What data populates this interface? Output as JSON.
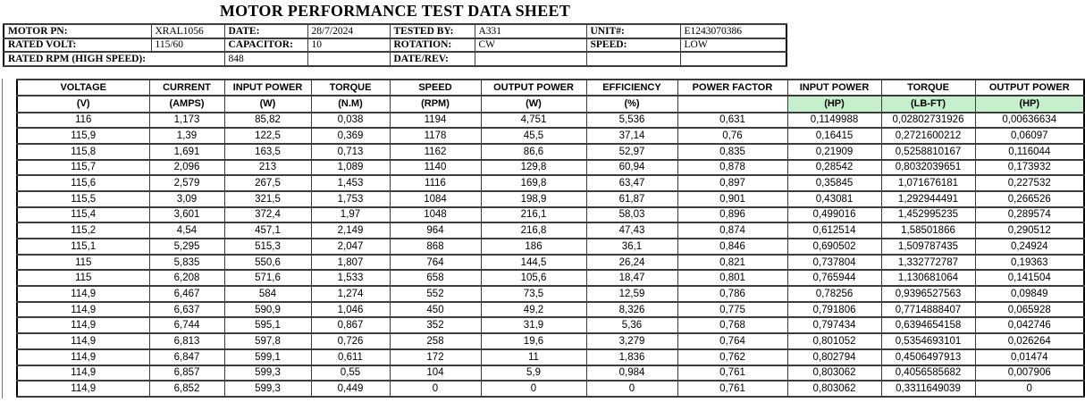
{
  "title": "MOTOR PERFORMANCE TEST DATA SHEET",
  "info": {
    "motor_pn": {
      "label": "MOTOR PN:",
      "value": "XRAL1056"
    },
    "date": {
      "label": "DATE:",
      "value": "28/7/2024"
    },
    "tested_by": {
      "label": "TESTED BY:",
      "value": "A331"
    },
    "unit_no": {
      "label": "UNIT#:",
      "value": "E1243070386"
    },
    "rated_volt": {
      "label": "RATED VOLT:",
      "value": "115/60"
    },
    "capacitor": {
      "label": "CAPACITOR:",
      "value": "10"
    },
    "rotation": {
      "label": "ROTATION:",
      "value": "CW"
    },
    "speed": {
      "label": "SPEED:",
      "value": "LOW"
    },
    "rated_rpm": {
      "label": "RATED RPM (HIGH SPEED):",
      "value": "848"
    },
    "date_rev": {
      "label": "DATE/REV:",
      "value": ""
    }
  },
  "table": {
    "highlight_color": "#c6efce",
    "columns": [
      {
        "id": "voltage",
        "name": "VOLTAGE",
        "unit": "(V)",
        "highlight": false
      },
      {
        "id": "current",
        "name": "CURRENT",
        "unit": "(AMPS)",
        "highlight": false
      },
      {
        "id": "input-power-w",
        "name": "INPUT POWER",
        "unit": "(W)",
        "highlight": false
      },
      {
        "id": "torque-nm",
        "name": "TORQUE",
        "unit": "(N.M)",
        "highlight": false
      },
      {
        "id": "speed-rpm",
        "name": "SPEED",
        "unit": "(RPM)",
        "highlight": false
      },
      {
        "id": "output-power-w",
        "name": "OUTPUT POWER",
        "unit": "(W)",
        "highlight": false
      },
      {
        "id": "efficiency",
        "name": "EFFICIENCY",
        "unit": "(%)",
        "highlight": false
      },
      {
        "id": "power-factor",
        "name": "POWER FACTOR",
        "unit": "",
        "highlight": false
      },
      {
        "id": "input-power-hp",
        "name": "INPUT POWER",
        "unit": "(HP)",
        "highlight": true
      },
      {
        "id": "torque-lbft",
        "name": "TORQUE",
        "unit": "(LB-FT)",
        "highlight": true
      },
      {
        "id": "output-power-hp",
        "name": "OUTPUT POWER",
        "unit": "(HP)",
        "highlight": true
      }
    ],
    "rows": [
      [
        "116",
        "1,173",
        "85,82",
        "0,038",
        "1194",
        "4,751",
        "5,536",
        "0,631",
        "0,1149988",
        "0,02802731926",
        "0,00636634"
      ],
      [
        "115,9",
        "1,39",
        "122,5",
        "0,369",
        "1178",
        "45,5",
        "37,14",
        "0,76",
        "0,16415",
        "0,2721600212",
        "0,06097"
      ],
      [
        "115,8",
        "1,691",
        "163,5",
        "0,713",
        "1162",
        "86,6",
        "52,97",
        "0,835",
        "0,21909",
        "0,5258810167",
        "0,116044"
      ],
      [
        "115,7",
        "2,096",
        "213",
        "1,089",
        "1140",
        "129,8",
        "60,94",
        "0,878",
        "0,28542",
        "0,8032039651",
        "0,173932"
      ],
      [
        "115,6",
        "2,579",
        "267,5",
        "1,453",
        "1116",
        "169,8",
        "63,47",
        "0,897",
        "0,35845",
        "1,071676181",
        "0,227532"
      ],
      [
        "115,5",
        "3,09",
        "321,5",
        "1,753",
        "1084",
        "198,9",
        "61,87",
        "0,901",
        "0,43081",
        "1,292944491",
        "0,266526"
      ],
      [
        "115,4",
        "3,601",
        "372,4",
        "1,97",
        "1048",
        "216,1",
        "58,03",
        "0,896",
        "0,499016",
        "1,452995235",
        "0,289574"
      ],
      [
        "115,2",
        "4,54",
        "457,1",
        "2,149",
        "964",
        "216,8",
        "47,43",
        "0,874",
        "0,612514",
        "1,58501866",
        "0,290512"
      ],
      [
        "115,1",
        "5,295",
        "515,3",
        "2,047",
        "868",
        "186",
        "36,1",
        "0,846",
        "0,690502",
        "1,509787435",
        "0,24924"
      ],
      [
        "115",
        "5,835",
        "550,6",
        "1,807",
        "764",
        "144,5",
        "26,24",
        "0,821",
        "0,737804",
        "1,332772787",
        "0,19363"
      ],
      [
        "115",
        "6,208",
        "571,6",
        "1,533",
        "658",
        "105,6",
        "18,47",
        "0,801",
        "0,765944",
        "1,130681064",
        "0,141504"
      ],
      [
        "114,9",
        "6,467",
        "584",
        "1,274",
        "552",
        "73,5",
        "12,59",
        "0,786",
        "0,78256",
        "0,9396527563",
        "0,09849"
      ],
      [
        "114,9",
        "6,637",
        "590,9",
        "1,046",
        "450",
        "49,2",
        "8,326",
        "0,775",
        "0,791806",
        "0,7714888407",
        "0,065928"
      ],
      [
        "114,9",
        "6,744",
        "595,1",
        "0,867",
        "352",
        "31,9",
        "5,36",
        "0,768",
        "0,797434",
        "0,6394654158",
        "0,042746"
      ],
      [
        "114,9",
        "6,813",
        "597,8",
        "0,726",
        "258",
        "19,6",
        "3,279",
        "0,764",
        "0,801052",
        "0,5354693101",
        "0,026264"
      ],
      [
        "114,9",
        "6,847",
        "599,1",
        "0,611",
        "172",
        "11",
        "1,836",
        "0,762",
        "0,802794",
        "0,4506497913",
        "0,01474"
      ],
      [
        "114,9",
        "6,857",
        "599,3",
        "0,55",
        "104",
        "5,9",
        "0,984",
        "0,761",
        "0,803062",
        "0,4056585682",
        "0,007906"
      ],
      [
        "114,9",
        "6,852",
        "599,3",
        "0,449",
        "0",
        "0",
        "0",
        "0,761",
        "0,803062",
        "0,3311649039",
        "0"
      ]
    ]
  }
}
